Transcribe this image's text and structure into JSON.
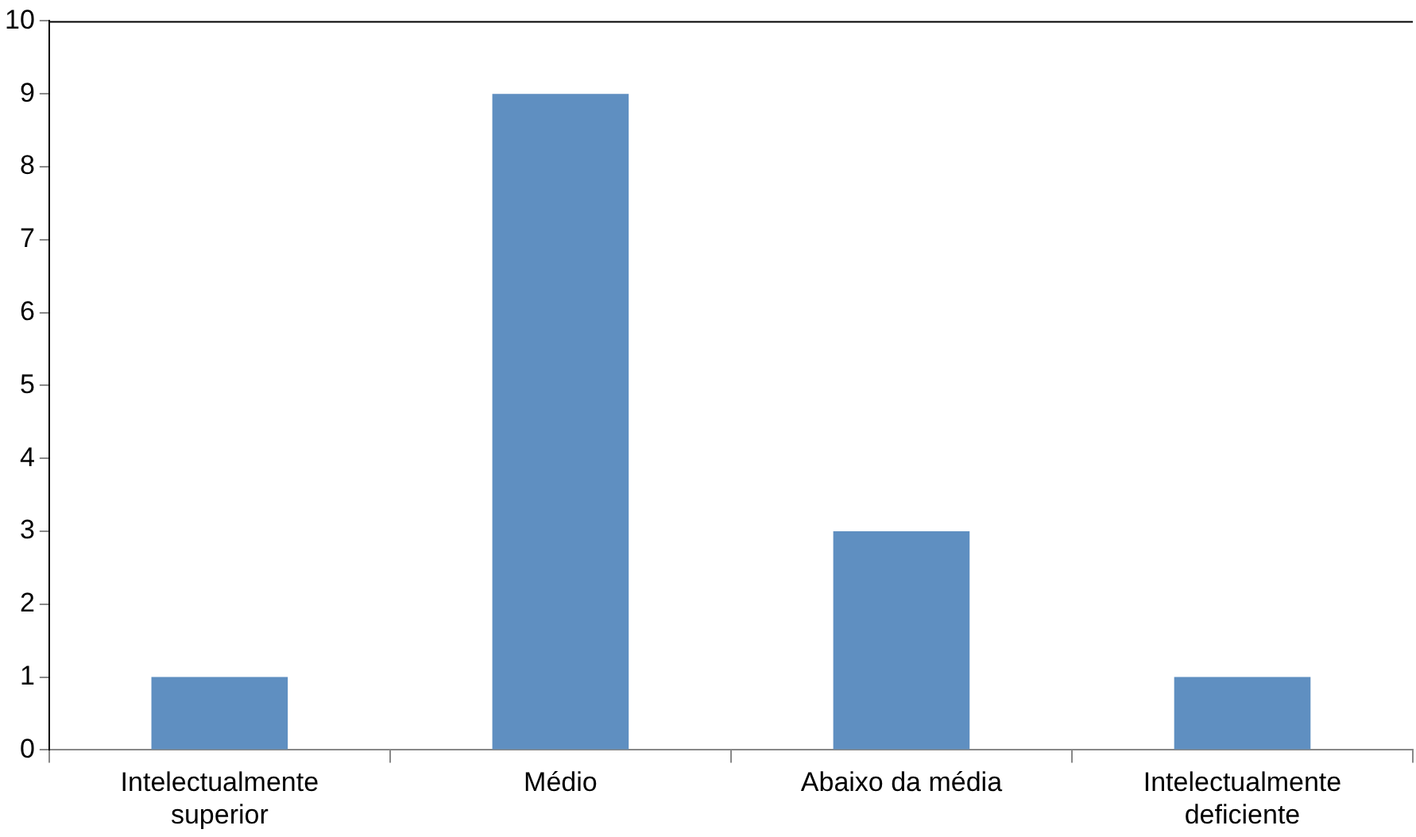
{
  "chart_data": {
    "type": "bar",
    "categories": [
      "Intelectualmente superior",
      "Médio",
      "Abaixo da média",
      "Intelectualmente deficiente"
    ],
    "values": [
      1,
      9,
      3,
      1
    ],
    "color": "#5f8fc1",
    "ylim": [
      0,
      10
    ],
    "yticks": [
      0,
      1,
      2,
      3,
      4,
      5,
      6,
      7,
      8,
      9,
      10
    ],
    "grid": false,
    "legend": false
  }
}
